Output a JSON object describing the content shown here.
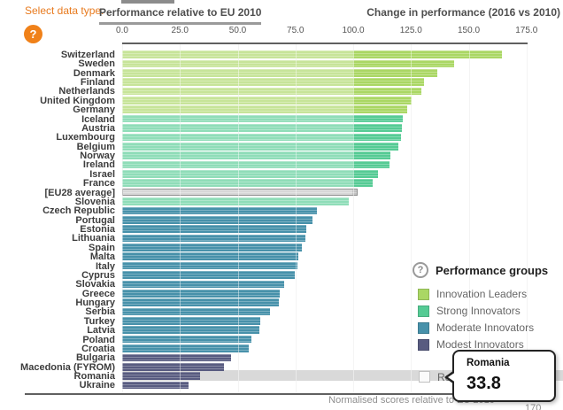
{
  "header": {
    "select_label": "Select data type:",
    "tab_active": "Performance relative to EU 2010",
    "tab_inactive": "Change in performance (2016 vs 2010)",
    "help_icon": "?"
  },
  "legend": {
    "icon": "?",
    "title": "Performance groups",
    "checkbox_label": "Re"
  },
  "tooltip": {
    "country": "Romania",
    "value": "33.8"
  },
  "footer": {
    "caption": "Normalised scores relative to EU 2010",
    "clipped_label": "170"
  },
  "chart_data": {
    "type": "bar",
    "orientation": "horizontal",
    "title": "Performance relative to EU 2010",
    "xlabel": "Normalised scores relative to EU 2010",
    "xlim": [
      0,
      175
    ],
    "tick_labels": [
      "0.0",
      "25.0",
      "50.0",
      "75.0",
      "100.0",
      "125.0",
      "150.0",
      "175.0"
    ],
    "grid": true,
    "legend_position": "right",
    "groups": {
      "leader": {
        "label": "Innovation Leaders",
        "color": "#aad764"
      },
      "strong": {
        "label": "Strong Innovators",
        "color": "#55cb94"
      },
      "moderate": {
        "label": "Moderate Innovators",
        "color": "#4791aa"
      },
      "modest": {
        "label": "Modest Innovators",
        "color": "#585b80"
      },
      "eu": {
        "label": "EU28 average",
        "color": "#c2c2c2",
        "border": "#8f8f8f"
      }
    },
    "legend_items": [
      "leader",
      "strong",
      "moderate",
      "modest"
    ],
    "rows": [
      {
        "label": "Switzerland",
        "value": 164.4,
        "group": "leader"
      },
      {
        "label": "Sweden",
        "value": 143.5,
        "group": "leader"
      },
      {
        "label": "Denmark",
        "value": 136.5,
        "group": "leader"
      },
      {
        "label": "Finland",
        "value": 130.6,
        "group": "leader"
      },
      {
        "label": "Netherlands",
        "value": 129.5,
        "group": "leader"
      },
      {
        "label": "United Kingdom",
        "value": 125.4,
        "group": "leader"
      },
      {
        "label": "Germany",
        "value": 123.2,
        "group": "leader"
      },
      {
        "label": "Iceland",
        "value": 121.4,
        "group": "strong"
      },
      {
        "label": "Austria",
        "value": 121.0,
        "group": "strong"
      },
      {
        "label": "Luxembourg",
        "value": 120.6,
        "group": "strong"
      },
      {
        "label": "Belgium",
        "value": 119.5,
        "group": "strong"
      },
      {
        "label": "Norway",
        "value": 116.0,
        "group": "strong"
      },
      {
        "label": "Ireland",
        "value": 115.7,
        "group": "strong"
      },
      {
        "label": "Israel",
        "value": 110.8,
        "group": "strong"
      },
      {
        "label": "France",
        "value": 108.5,
        "group": "strong"
      },
      {
        "label": "[EU28 average]",
        "value": 102.1,
        "group": "eu"
      },
      {
        "label": "Slovenia",
        "value": 97.9,
        "group": "strong"
      },
      {
        "label": "Czech Republic",
        "value": 84.3,
        "group": "moderate"
      },
      {
        "label": "Portugal",
        "value": 82.4,
        "group": "moderate"
      },
      {
        "label": "Estonia",
        "value": 79.8,
        "group": "moderate"
      },
      {
        "label": "Lithuania",
        "value": 79.4,
        "group": "moderate"
      },
      {
        "label": "Spain",
        "value": 77.8,
        "group": "moderate"
      },
      {
        "label": "Malta",
        "value": 76.2,
        "group": "moderate"
      },
      {
        "label": "Italy",
        "value": 76.0,
        "group": "moderate"
      },
      {
        "label": "Cyprus",
        "value": 74.7,
        "group": "moderate"
      },
      {
        "label": "Slovakia",
        "value": 70.1,
        "group": "moderate"
      },
      {
        "label": "Greece",
        "value": 68.3,
        "group": "moderate"
      },
      {
        "label": "Hungary",
        "value": 67.9,
        "group": "moderate"
      },
      {
        "label": "Serbia",
        "value": 63.8,
        "group": "moderate"
      },
      {
        "label": "Turkey",
        "value": 59.7,
        "group": "moderate"
      },
      {
        "label": "Latvia",
        "value": 59.2,
        "group": "moderate"
      },
      {
        "label": "Poland",
        "value": 55.8,
        "group": "moderate"
      },
      {
        "label": "Croatia",
        "value": 54.9,
        "group": "moderate"
      },
      {
        "label": "Bulgaria",
        "value": 47.3,
        "group": "modest"
      },
      {
        "label": "Macedonia (FYROM)",
        "value": 43.9,
        "group": "modest"
      },
      {
        "label": "Romania",
        "value": 33.8,
        "group": "modest"
      },
      {
        "label": "Ukraine",
        "value": 28.9,
        "group": "modest"
      }
    ],
    "highlighted_row": "Romania"
  }
}
